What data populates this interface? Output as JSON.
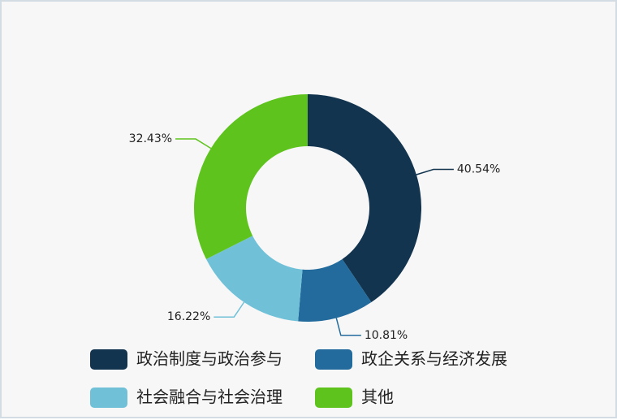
{
  "chart_data": {
    "type": "pie",
    "categories": [
      "政治制度与政治参与",
      "政企关系与经济发展",
      "社会融合与社会治理",
      "其他"
    ],
    "values": [
      40.54,
      10.81,
      16.22,
      32.43
    ],
    "value_labels": [
      "40.54%",
      "10.81%",
      "16.22%",
      "32.43%"
    ],
    "colors": [
      "#12344f",
      "#236b9c",
      "#70c1d8",
      "#5fc31e"
    ],
    "donut": true,
    "legend": "bottom"
  }
}
